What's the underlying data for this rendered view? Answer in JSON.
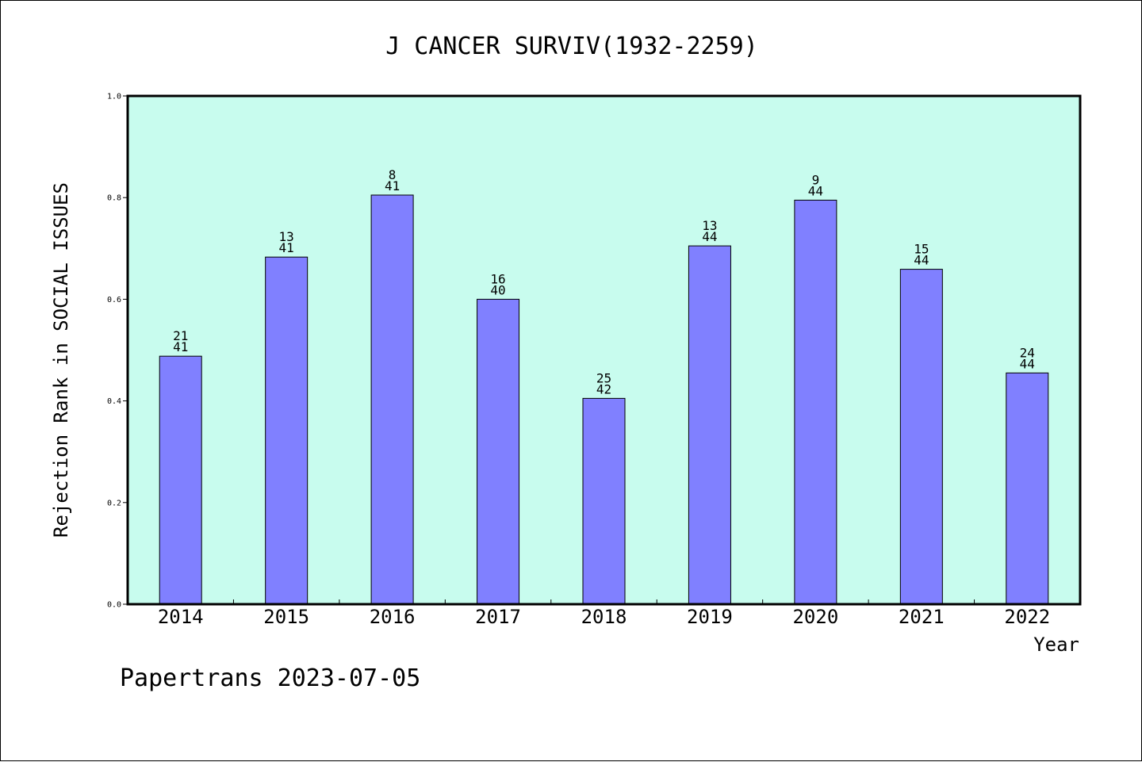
{
  "chart_data": {
    "type": "bar",
    "title": "J CANCER SURVIV(1932-2259)",
    "xlabel": "Year",
    "ylabel": "Rejection Rank in SOCIAL ISSUES",
    "ylim": [
      0.0,
      1.0
    ],
    "yticks": [
      "0.0",
      "0.2",
      "0.4",
      "0.6",
      "0.8",
      "1.0"
    ],
    "categories": [
      "2014",
      "2015",
      "2016",
      "2017",
      "2018",
      "2019",
      "2020",
      "2021",
      "2022"
    ],
    "values": [
      0.488,
      0.683,
      0.805,
      0.6,
      0.405,
      0.705,
      0.795,
      0.659,
      0.455
    ],
    "rank": [
      "21",
      "13",
      "8",
      "16",
      "25",
      "13",
      "9",
      "15",
      "24"
    ],
    "total": [
      "41",
      "41",
      "41",
      "40",
      "42",
      "44",
      "44",
      "44",
      "44"
    ],
    "grid": false,
    "colors": {
      "plot_background": "#c8fcee",
      "bar_fill": "#8080ff",
      "bar_stroke": "#000000"
    }
  },
  "footer": "Papertrans 2023-07-05"
}
